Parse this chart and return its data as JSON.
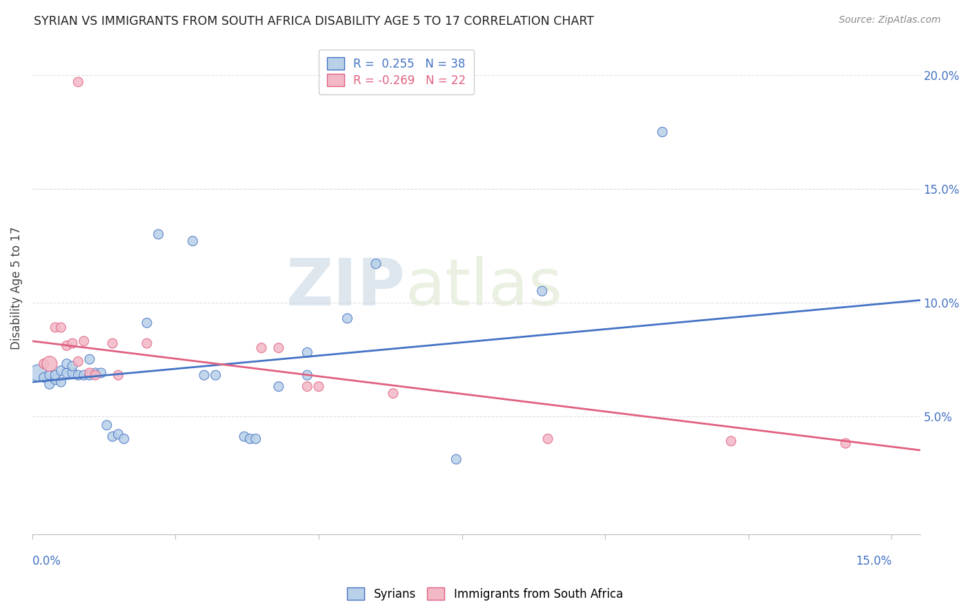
{
  "title": "SYRIAN VS IMMIGRANTS FROM SOUTH AFRICA DISABILITY AGE 5 TO 17 CORRELATION CHART",
  "source": "Source: ZipAtlas.com",
  "ylabel": "Disability Age 5 to 17",
  "xlim": [
    0.0,
    0.155
  ],
  "ylim": [
    -0.002,
    0.215
  ],
  "xticks": [
    0.0,
    0.025,
    0.05,
    0.075,
    0.1,
    0.125,
    0.15
  ],
  "yticks_right": [
    0.05,
    0.1,
    0.15,
    0.2
  ],
  "ytick_labels_right": [
    "5.0%",
    "10.0%",
    "15.0%",
    "20.0%"
  ],
  "watermark_zip": "ZIP",
  "watermark_atlas": "atlas",
  "legend_r1": "R =  0.255   N = 38",
  "legend_r2": "R = -0.269   N = 22",
  "legend_label1": "Syrians",
  "legend_label2": "Immigrants from South Africa",
  "blue_color": "#b8d0e8",
  "blue_line_color": "#4472c4",
  "pink_color": "#f2b8c6",
  "pink_line_color": "#e06080",
  "blue_dots": [
    [
      0.001,
      0.069
    ],
    [
      0.002,
      0.067
    ],
    [
      0.003,
      0.068
    ],
    [
      0.003,
      0.064
    ],
    [
      0.004,
      0.066
    ],
    [
      0.004,
      0.068
    ],
    [
      0.005,
      0.07
    ],
    [
      0.005,
      0.065
    ],
    [
      0.006,
      0.069
    ],
    [
      0.006,
      0.073
    ],
    [
      0.007,
      0.069
    ],
    [
      0.007,
      0.072
    ],
    [
      0.008,
      0.068
    ],
    [
      0.009,
      0.068
    ],
    [
      0.01,
      0.068
    ],
    [
      0.01,
      0.075
    ],
    [
      0.011,
      0.069
    ],
    [
      0.012,
      0.069
    ],
    [
      0.013,
      0.046
    ],
    [
      0.014,
      0.041
    ],
    [
      0.015,
      0.042
    ],
    [
      0.016,
      0.04
    ],
    [
      0.02,
      0.091
    ],
    [
      0.022,
      0.13
    ],
    [
      0.028,
      0.127
    ],
    [
      0.03,
      0.068
    ],
    [
      0.032,
      0.068
    ],
    [
      0.037,
      0.041
    ],
    [
      0.038,
      0.04
    ],
    [
      0.039,
      0.04
    ],
    [
      0.043,
      0.063
    ],
    [
      0.048,
      0.068
    ],
    [
      0.048,
      0.078
    ],
    [
      0.055,
      0.093
    ],
    [
      0.06,
      0.117
    ],
    [
      0.074,
      0.031
    ],
    [
      0.089,
      0.105
    ],
    [
      0.11,
      0.175
    ]
  ],
  "blue_dot_sizes": [
    300,
    100,
    100,
    100,
    100,
    100,
    100,
    100,
    100,
    100,
    100,
    100,
    100,
    100,
    100,
    100,
    100,
    100,
    100,
    100,
    100,
    100,
    100,
    100,
    100,
    100,
    100,
    100,
    100,
    100,
    100,
    100,
    100,
    100,
    100,
    100,
    100,
    100
  ],
  "pink_dots": [
    [
      0.002,
      0.073
    ],
    [
      0.003,
      0.073
    ],
    [
      0.004,
      0.089
    ],
    [
      0.005,
      0.089
    ],
    [
      0.006,
      0.081
    ],
    [
      0.007,
      0.082
    ],
    [
      0.008,
      0.074
    ],
    [
      0.008,
      0.197
    ],
    [
      0.009,
      0.083
    ],
    [
      0.01,
      0.069
    ],
    [
      0.011,
      0.068
    ],
    [
      0.014,
      0.082
    ],
    [
      0.015,
      0.068
    ],
    [
      0.02,
      0.082
    ],
    [
      0.04,
      0.08
    ],
    [
      0.043,
      0.08
    ],
    [
      0.048,
      0.063
    ],
    [
      0.05,
      0.063
    ],
    [
      0.063,
      0.06
    ],
    [
      0.09,
      0.04
    ],
    [
      0.122,
      0.039
    ],
    [
      0.142,
      0.038
    ]
  ],
  "pink_dot_sizes": [
    100,
    250,
    100,
    100,
    100,
    100,
    100,
    100,
    100,
    100,
    100,
    100,
    100,
    100,
    100,
    100,
    100,
    100,
    100,
    100,
    100,
    100
  ]
}
